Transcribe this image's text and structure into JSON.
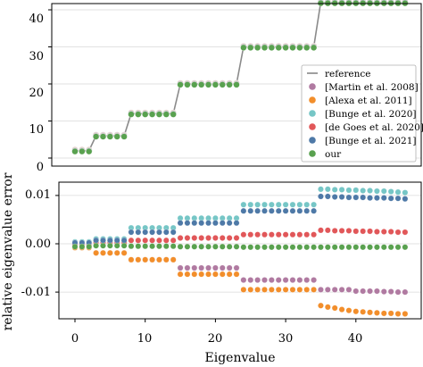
{
  "chart_data": [
    {
      "type": "scatter",
      "title": "",
      "xlabel": "",
      "ylabel": "",
      "ylim": [
        0,
        45
      ],
      "y_ticks": [
        "0",
        "10",
        "20",
        "30",
        "40"
      ],
      "grid": "horizontal",
      "legend_placement": "bottom-right",
      "reference": {
        "name": "reference",
        "x": [
          0,
          1,
          2,
          3,
          4,
          5,
          6,
          7,
          8,
          9,
          10,
          11,
          12,
          13,
          14,
          15,
          16,
          17,
          18,
          19,
          20,
          21,
          22,
          23,
          24,
          25,
          26,
          27,
          28,
          29,
          30,
          31,
          32,
          33,
          34,
          35,
          36,
          37,
          38,
          39,
          40,
          41,
          42,
          43,
          44,
          45,
          46,
          47
        ],
        "values": [
          2,
          2,
          2,
          6,
          6,
          6,
          6,
          6,
          12,
          12,
          12,
          12,
          12,
          12,
          12,
          20,
          20,
          20,
          20,
          20,
          20,
          20,
          20,
          20,
          30,
          30,
          30,
          30,
          30,
          30,
          30,
          30,
          30,
          30,
          30,
          42,
          42,
          42,
          42,
          42,
          42,
          42,
          42,
          42,
          42,
          42,
          42,
          42
        ]
      },
      "series": [
        {
          "name": "[Martin et al. 2008]",
          "color": "#b07aa1"
        },
        {
          "name": "[Alexa et al. 2011]",
          "color": "#f28e2b"
        },
        {
          "name": "[Bunge et al. 2020]",
          "color": "#76c6c6"
        },
        {
          "name": "[de Goes et al. 2020]",
          "color": "#e15759"
        },
        {
          "name": "[Bunge et al. 2021]",
          "color": "#4e79a7"
        },
        {
          "name": "our",
          "color": "#59a14f"
        }
      ]
    },
    {
      "type": "scatter",
      "title": "",
      "xlabel": "Eigenvalue",
      "ylabel": "relative eigenvalue error",
      "xlim": [
        -5,
        49
      ],
      "ylim": [
        -0.0158,
        0.0128
      ],
      "x_ticks": [
        "0",
        "10",
        "20",
        "30",
        "40"
      ],
      "y_ticks": [
        "0.01",
        "0.00",
        "-0.01"
      ],
      "grid": "horizontal",
      "x": [
        0,
        1,
        2,
        3,
        4,
        5,
        6,
        7,
        8,
        9,
        10,
        11,
        12,
        13,
        14,
        15,
        16,
        17,
        18,
        19,
        20,
        21,
        22,
        23,
        24,
        25,
        26,
        27,
        28,
        29,
        30,
        31,
        32,
        33,
        34,
        35,
        36,
        37,
        38,
        39,
        40,
        41,
        42,
        43,
        44,
        45,
        46,
        47
      ],
      "series": [
        {
          "name": "[Martin et al. 2008]",
          "color": "#b07aa1",
          "values": [
            -0.0008,
            -0.0008,
            -0.0008,
            -0.0019,
            -0.0019,
            -0.0019,
            -0.0019,
            -0.0019,
            -0.0033,
            -0.0033,
            -0.0033,
            -0.0033,
            -0.0033,
            -0.0033,
            -0.0033,
            -0.005,
            -0.005,
            -0.005,
            -0.005,
            -0.005,
            -0.005,
            -0.005,
            -0.005,
            -0.005,
            -0.0075,
            -0.0075,
            -0.0075,
            -0.0075,
            -0.0075,
            -0.0075,
            -0.0075,
            -0.0075,
            -0.0075,
            -0.0075,
            -0.0075,
            -0.0095,
            -0.0095,
            -0.0095,
            -0.0095,
            -0.0095,
            -0.0098,
            -0.0098,
            -0.0098,
            -0.0098,
            -0.0099,
            -0.0099,
            -0.01,
            -0.01
          ]
        },
        {
          "name": "[Alexa et al. 2011]",
          "color": "#f28e2b",
          "values": [
            -0.0008,
            -0.0008,
            -0.0008,
            -0.0019,
            -0.0019,
            -0.0019,
            -0.0019,
            -0.0019,
            -0.0033,
            -0.0033,
            -0.0033,
            -0.0033,
            -0.0033,
            -0.0033,
            -0.0033,
            -0.0063,
            -0.0063,
            -0.0063,
            -0.0063,
            -0.0063,
            -0.0063,
            -0.0063,
            -0.0063,
            -0.0063,
            -0.0095,
            -0.0095,
            -0.0095,
            -0.0095,
            -0.0095,
            -0.0095,
            -0.0095,
            -0.0095,
            -0.0095,
            -0.0095,
            -0.0095,
            -0.0128,
            -0.0131,
            -0.0133,
            -0.0136,
            -0.0138,
            -0.014,
            -0.0141,
            -0.0142,
            -0.0143,
            -0.0144,
            -0.0144,
            -0.0145,
            -0.0145
          ]
        },
        {
          "name": "[Bunge et al. 2020]",
          "color": "#76c6c6",
          "values": [
            0.0004,
            0.0004,
            0.0004,
            0.001,
            0.001,
            0.001,
            0.001,
            0.001,
            0.0033,
            0.0033,
            0.0033,
            0.0033,
            0.0033,
            0.0033,
            0.0033,
            0.0053,
            0.0053,
            0.0053,
            0.0053,
            0.0053,
            0.0053,
            0.0053,
            0.0053,
            0.0053,
            0.0081,
            0.0081,
            0.0081,
            0.0081,
            0.0081,
            0.0081,
            0.0081,
            0.0081,
            0.0081,
            0.0081,
            0.0081,
            0.0113,
            0.0113,
            0.0112,
            0.0112,
            0.0111,
            0.0111,
            0.011,
            0.011,
            0.0109,
            0.0109,
            0.0108,
            0.0107,
            0.0106
          ]
        },
        {
          "name": "[de Goes et al. 2020]",
          "color": "#e15759",
          "values": [
            -0.0002,
            -0.0002,
            -0.0002,
            0.0003,
            0.0003,
            0.0003,
            0.0003,
            0.0003,
            0.0007,
            0.0007,
            0.0007,
            0.0007,
            0.0007,
            0.0007,
            0.0007,
            0.0012,
            0.0012,
            0.0012,
            0.0012,
            0.0012,
            0.0012,
            0.0012,
            0.0012,
            0.0012,
            0.0019,
            0.0019,
            0.0019,
            0.0019,
            0.0019,
            0.0019,
            0.0019,
            0.0019,
            0.0019,
            0.0019,
            0.0019,
            0.0028,
            0.0028,
            0.0027,
            0.0027,
            0.0027,
            0.0026,
            0.0026,
            0.0026,
            0.0025,
            0.0025,
            0.0025,
            0.0024,
            0.0024
          ]
        },
        {
          "name": "[Bunge et al. 2021]",
          "color": "#4e79a7",
          "values": [
            0.0002,
            0.0002,
            0.0002,
            0.0007,
            0.0007,
            0.0007,
            0.0007,
            0.0007,
            0.0024,
            0.0024,
            0.0024,
            0.0024,
            0.0024,
            0.0024,
            0.0024,
            0.0043,
            0.0043,
            0.0043,
            0.0043,
            0.0043,
            0.0043,
            0.0043,
            0.0043,
            0.0043,
            0.0068,
            0.0068,
            0.0068,
            0.0068,
            0.0068,
            0.0068,
            0.0068,
            0.0068,
            0.0068,
            0.0068,
            0.0068,
            0.0098,
            0.0098,
            0.0097,
            0.0097,
            0.0096,
            0.0096,
            0.0096,
            0.0095,
            0.0095,
            0.0095,
            0.0094,
            0.0094,
            0.0093
          ]
        },
        {
          "name": "our",
          "color": "#59a14f",
          "values": [
            -0.0006,
            -0.0006,
            -0.0006,
            -0.0004,
            -0.0004,
            -0.0004,
            -0.0004,
            -0.0004,
            -0.0005,
            -0.0005,
            -0.0005,
            -0.0005,
            -0.0005,
            -0.0005,
            -0.0005,
            -0.0006,
            -0.0006,
            -0.0006,
            -0.0006,
            -0.0006,
            -0.0006,
            -0.0006,
            -0.0006,
            -0.0006,
            -0.0007,
            -0.0007,
            -0.0007,
            -0.0007,
            -0.0007,
            -0.0007,
            -0.0007,
            -0.0007,
            -0.0007,
            -0.0007,
            -0.0007,
            -0.0007,
            -0.0007,
            -0.0007,
            -0.0007,
            -0.0007,
            -0.0007,
            -0.0007,
            -0.0007,
            -0.0007,
            -0.0007,
            -0.0007,
            -0.0007,
            -0.0007
          ]
        }
      ]
    }
  ]
}
